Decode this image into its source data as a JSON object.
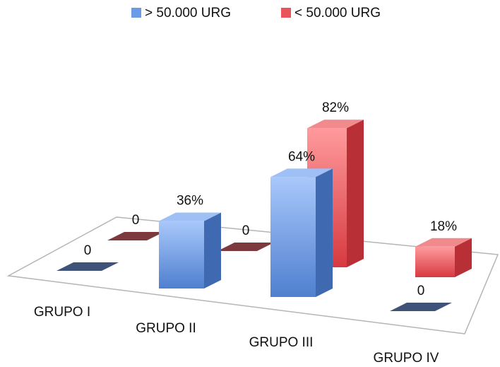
{
  "chart_data": {
    "type": "bar3d",
    "categories": [
      "GRUPO I",
      "GRUPO II",
      "GRUPO III",
      "GRUPO IV"
    ],
    "series": [
      {
        "name": "> 50.000 URG",
        "color": "#6b9be6",
        "values": [
          0,
          36,
          64,
          0
        ],
        "value_labels": [
          "0",
          "36%",
          "64%",
          "0"
        ]
      },
      {
        "name": "< 50.000 URG",
        "color": "#e8545a",
        "values": [
          0,
          0,
          82,
          18
        ],
        "value_labels": [
          "0",
          "0",
          "82%",
          "18%"
        ]
      }
    ],
    "legend": "top"
  }
}
